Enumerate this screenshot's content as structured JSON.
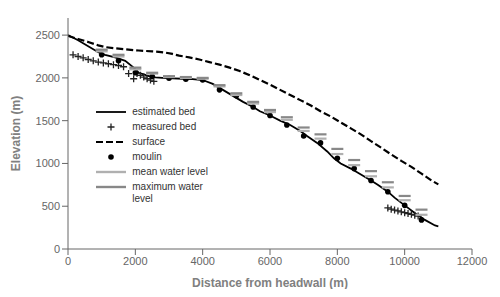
{
  "chart_data": {
    "type": "line",
    "xlabel": "Distance from headwall (m)",
    "ylabel": "Elevation (m)",
    "xlim": [
      0,
      12000
    ],
    "ylim": [
      0,
      2700
    ],
    "xticks": [
      0,
      2000,
      4000,
      6000,
      8000,
      10000,
      12000
    ],
    "yticks": [
      0,
      500,
      1000,
      1500,
      2000,
      2500
    ],
    "grid": false,
    "legend": "center left",
    "series": [
      {
        "name": "estimated bed",
        "type": "line",
        "color": "#000000",
        "line_style": "solid",
        "marker": "none",
        "x": [
          0,
          300,
          600,
          900,
          1100,
          1400,
          1700,
          1950,
          2100,
          2250,
          2400,
          2600,
          2800,
          3100,
          3400,
          3700,
          4000,
          4300,
          4600,
          4900,
          5200,
          5500,
          5700,
          6000,
          6300,
          6600,
          6900,
          7100,
          7400,
          7700,
          7900,
          8100,
          8400,
          8700,
          9000,
          9200,
          9500,
          9700,
          10000,
          10300,
          10600,
          10900,
          11000
        ],
        "values": [
          2500,
          2440,
          2370,
          2300,
          2270,
          2240,
          2200,
          2120,
          2060,
          2040,
          2020,
          2005,
          2000,
          1995,
          1990,
          1985,
          1975,
          1930,
          1860,
          1790,
          1720,
          1660,
          1610,
          1560,
          1500,
          1450,
          1380,
          1320,
          1240,
          1140,
          1060,
          1000,
          940,
          870,
          800,
          750,
          670,
          600,
          510,
          420,
          340,
          275,
          265
        ]
      },
      {
        "name": "measured bed",
        "type": "scatter",
        "color": "#222222",
        "marker": "+",
        "x": [
          150,
          300,
          450,
          600,
          750,
          900,
          1050,
          1200,
          1350,
          1500,
          1650,
          1800,
          1950,
          2050,
          2150,
          2250,
          2350,
          2450,
          2550,
          9500,
          9600,
          9700,
          9800,
          9900,
          10000,
          10100,
          10200,
          10300,
          10400
        ],
        "values": [
          2270,
          2250,
          2235,
          2215,
          2200,
          2185,
          2175,
          2165,
          2155,
          2145,
          2130,
          2050,
          1990,
          2050,
          2030,
          2010,
          1990,
          1975,
          1960,
          480,
          465,
          455,
          445,
          435,
          425,
          415,
          405,
          395,
          385
        ]
      },
      {
        "name": "surface",
        "type": "line",
        "color": "#000000",
        "line_style": "dashed",
        "marker": "none",
        "x": [
          0,
          300,
          600,
          900,
          1100,
          1400,
          1700,
          1950,
          2100,
          2300,
          2500,
          2700,
          2900,
          3100,
          3300,
          3600,
          3900,
          4200,
          4500,
          4800,
          5100,
          5400,
          5700,
          6000,
          6300,
          6600,
          6900,
          7200,
          7500,
          7800,
          8100,
          8400,
          8700,
          9000,
          9300,
          9600,
          9900,
          10200,
          10500,
          10800,
          11000
        ],
        "values": [
          2490,
          2455,
          2420,
          2380,
          2360,
          2345,
          2335,
          2325,
          2320,
          2315,
          2310,
          2305,
          2295,
          2280,
          2260,
          2240,
          2215,
          2185,
          2155,
          2120,
          2080,
          2030,
          1975,
          1920,
          1860,
          1800,
          1740,
          1680,
          1610,
          1550,
          1480,
          1410,
          1340,
          1260,
          1185,
          1105,
          1030,
          960,
          880,
          800,
          755
        ]
      },
      {
        "name": "moulin",
        "type": "scatter",
        "color": "#000000",
        "marker": "o",
        "x": [
          1000,
          1500,
          2000,
          2500,
          3000,
          3500,
          4000,
          4500,
          5000,
          5500,
          6000,
          6500,
          7000,
          7500,
          8000,
          8500,
          9000,
          9500,
          10000,
          10500
        ],
        "values": [
          2270,
          2200,
          2060,
          2020,
          1995,
          1985,
          1975,
          1860,
          1790,
          1660,
          1560,
          1450,
          1320,
          1240,
          1060,
          940,
          800,
          670,
          510,
          340
        ]
      },
      {
        "name": "mean water level",
        "type": "scatter",
        "color": "#b0b0b0",
        "marker": "hline",
        "x": [
          1000,
          1500,
          2000,
          2500,
          3000,
          3500,
          4000,
          4500,
          5000,
          5500,
          6000,
          6500,
          7000,
          7500,
          8000,
          8500,
          9000,
          9500,
          10000,
          10500
        ],
        "values": [
          2310,
          2250,
          2100,
          2050,
          2010,
          2000,
          1990,
          1900,
          1800,
          1700,
          1600,
          1510,
          1380,
          1290,
          1110,
          980,
          850,
          720,
          570,
          400
        ]
      },
      {
        "name": "maximum water\nlevel",
        "type": "scatter",
        "color": "#888888",
        "marker": "hline",
        "x": [
          1000,
          1500,
          2000,
          2500,
          3000,
          3500,
          4000,
          4500,
          5000,
          5500,
          6000,
          6500,
          7000,
          7500,
          8000,
          8500,
          9000,
          9500,
          10000,
          10500
        ],
        "values": [
          2330,
          2270,
          2120,
          2060,
          2020,
          2010,
          2000,
          1915,
          1820,
          1720,
          1625,
          1540,
          1420,
          1340,
          1170,
          1040,
          910,
          780,
          620,
          460
        ]
      }
    ]
  }
}
